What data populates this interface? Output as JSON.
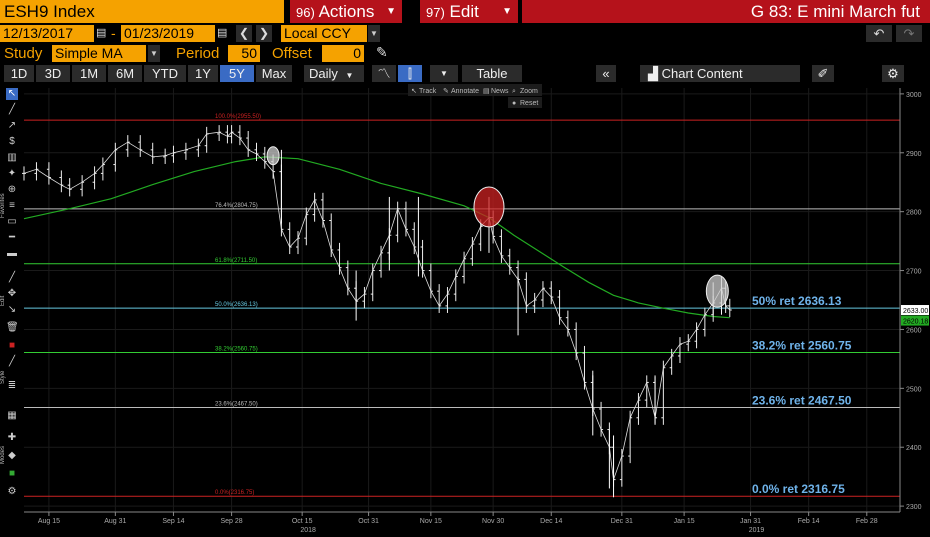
{
  "header": {
    "ticker": "ESH9 Index",
    "actions": {
      "num": "96)",
      "label": "Actions"
    },
    "edit": {
      "num": "97)",
      "label": "Edit"
    },
    "description": "G 83: E mini March fut"
  },
  "range": {
    "start": "12/13/2017",
    "sep": "-",
    "end": "01/23/2019",
    "currency": "Local CCY"
  },
  "study": {
    "label": "Study",
    "value": "Simple MA",
    "period_label": "Period",
    "period": "50",
    "offset_label": "Offset",
    "offset": "0"
  },
  "toolbar": {
    "periods": [
      "1D",
      "3D",
      "1M",
      "6M",
      "YTD",
      "1Y",
      "5Y",
      "Max"
    ],
    "selected_period": "5Y",
    "frequency": "Daily",
    "table": "Table",
    "chart_content": "Chart Content"
  },
  "chart_toolbar": {
    "track": "Track",
    "annotate": "Annotate",
    "news": "News",
    "zoom": "Zoom",
    "reset": "Reset"
  },
  "sidebar_labels": {
    "favorites": "Favorites",
    "edit": "Edit",
    "style": "Style",
    "modes": "Modes"
  },
  "colors": {
    "ticker_bg": "#f5a200",
    "menu_bg": "#b5121b",
    "price": "#ffffff",
    "ma": "#22aa22",
    "fib_100": "#cc2222",
    "fib_618": "#33cc33",
    "fib_50": "#66c8e0",
    "fib_382": "#33cc33",
    "fib_236": "#bbbbbb",
    "fib_0": "#cc2222",
    "label_blue": "#6fb3ea"
  },
  "chart_data": {
    "type": "line",
    "yticks": [
      3000,
      2900,
      2800,
      2700,
      2600,
      2500,
      2400,
      2300
    ],
    "ylim": [
      2290,
      3010
    ],
    "xticks": [
      {
        "date": "Aug 15",
        "day": 0
      },
      {
        "date": "Aug 31",
        "day": 16
      },
      {
        "date": "Sep 14",
        "day": 30
      },
      {
        "date": "Sep 28",
        "day": 44
      },
      {
        "date": "Oct 15",
        "day": 61
      },
      {
        "date": "Oct 31",
        "day": 77
      },
      {
        "date": "Nov 15",
        "day": 92
      },
      {
        "date": "Nov 30",
        "day": 107
      },
      {
        "date": "Dec 14",
        "day": 121
      },
      {
        "date": "Dec 31",
        "day": 138
      },
      {
        "date": "Jan 15",
        "day": 153
      },
      {
        "date": "Jan 31",
        "day": 169
      },
      {
        "date": "Feb 14",
        "day": 183
      },
      {
        "date": "Feb 28",
        "day": 197
      }
    ],
    "year_labels": [
      {
        "text": "2018",
        "day": 61
      },
      {
        "text": "2019",
        "day": 169
      }
    ],
    "xlim": [
      -6,
      205
    ],
    "fib_levels": [
      {
        "tag": "100.0%(2955.50)",
        "value": 2955.5,
        "color": "#cc2222",
        "right_label": ""
      },
      {
        "tag": "76.4%(2804.75)",
        "value": 2804.75,
        "color": "#bbbbbb",
        "right_label": ""
      },
      {
        "tag": "61.8%(2711.50)",
        "value": 2711.5,
        "color": "#33cc33",
        "right_label": ""
      },
      {
        "tag": "50.0%(2636.13)",
        "value": 2636.13,
        "color": "#66c8e0",
        "right_label": "50% ret 2636.13"
      },
      {
        "tag": "38.2%(2560.75)",
        "value": 2560.75,
        "color": "#33cc33",
        "right_label": "38.2% ret 2560.75"
      },
      {
        "tag": "23.6%(2467.50)",
        "value": 2467.5,
        "color": "#bbbbbb",
        "right_label": "23.6% ret 2467.50"
      },
      {
        "tag": "0.0%(2316.75)",
        "value": 2316.75,
        "color": "#cc2222",
        "right_label": "0.0% ret 2316.75"
      }
    ],
    "last_price": "2633.00",
    "ma_last": "2620.18",
    "price_series": {
      "name": "",
      "points": [
        [
          -6,
          2865
        ],
        [
          -3,
          2872
        ],
        [
          0,
          2858
        ],
        [
          3,
          2845
        ],
        [
          5,
          2838
        ],
        [
          8,
          2850
        ],
        [
          11,
          2865
        ],
        [
          13,
          2880
        ],
        [
          16,
          2905
        ],
        [
          19,
          2918
        ],
        [
          22,
          2905
        ],
        [
          25,
          2893
        ],
        [
          28,
          2895
        ],
        [
          30,
          2900
        ],
        [
          33,
          2905
        ],
        [
          36,
          2912
        ],
        [
          38,
          2932
        ],
        [
          41,
          2935
        ],
        [
          43,
          2928
        ],
        [
          44,
          2935
        ],
        [
          46,
          2925
        ],
        [
          48,
          2905
        ],
        [
          50,
          2898
        ],
        [
          52,
          2885
        ],
        [
          54,
          2868
        ],
        [
          56,
          2770
        ],
        [
          58,
          2740
        ],
        [
          60,
          2755
        ],
        [
          62,
          2795
        ],
        [
          64,
          2820
        ],
        [
          66,
          2785
        ],
        [
          68,
          2735
        ],
        [
          70,
          2705
        ],
        [
          72,
          2670
        ],
        [
          74,
          2648
        ],
        [
          76,
          2660
        ],
        [
          78,
          2700
        ],
        [
          80,
          2730
        ],
        [
          82,
          2760
        ],
        [
          84,
          2805
        ],
        [
          86,
          2770
        ],
        [
          88,
          2740
        ],
        [
          90,
          2700
        ],
        [
          92,
          2665
        ],
        [
          94,
          2640
        ],
        [
          96,
          2660
        ],
        [
          98,
          2690
        ],
        [
          100,
          2720
        ],
        [
          102,
          2745
        ],
        [
          104,
          2775
        ],
        [
          106,
          2790
        ],
        [
          107,
          2758
        ],
        [
          109,
          2725
        ],
        [
          111,
          2705
        ],
        [
          113,
          2685
        ],
        [
          115,
          2640
        ],
        [
          117,
          2650
        ],
        [
          119,
          2670
        ],
        [
          121,
          2655
        ],
        [
          123,
          2620
        ],
        [
          125,
          2600
        ],
        [
          127,
          2560
        ],
        [
          129,
          2510
        ],
        [
          131,
          2465
        ],
        [
          133,
          2430
        ],
        [
          135,
          2400
        ],
        [
          136,
          2345
        ],
        [
          138,
          2385
        ],
        [
          140,
          2450
        ],
        [
          142,
          2480
        ],
        [
          144,
          2510
        ],
        [
          146,
          2450
        ],
        [
          148,
          2535
        ],
        [
          150,
          2555
        ],
        [
          152,
          2575
        ],
        [
          154,
          2580
        ],
        [
          156,
          2600
        ],
        [
          158,
          2625
        ],
        [
          160,
          2645
        ],
        [
          162,
          2670
        ],
        [
          163,
          2640
        ],
        [
          164,
          2633
        ]
      ]
    },
    "ma_series": {
      "name": "",
      "points": [
        [
          -6,
          2788
        ],
        [
          5,
          2805
        ],
        [
          15,
          2822
        ],
        [
          25,
          2846
        ],
        [
          35,
          2868
        ],
        [
          45,
          2885
        ],
        [
          52,
          2893
        ],
        [
          60,
          2890
        ],
        [
          70,
          2872
        ],
        [
          80,
          2848
        ],
        [
          90,
          2830
        ],
        [
          100,
          2810
        ],
        [
          106,
          2790
        ],
        [
          112,
          2760
        ],
        [
          118,
          2733
        ],
        [
          124,
          2706
        ],
        [
          130,
          2680
        ],
        [
          136,
          2658
        ],
        [
          142,
          2645
        ],
        [
          148,
          2636
        ],
        [
          154,
          2628
        ],
        [
          160,
          2622
        ],
        [
          164,
          2620
        ]
      ]
    },
    "range_bars": {
      "spikes": [
        [
          56,
          2780,
          2905
        ],
        [
          74,
          2615,
          2700
        ],
        [
          82,
          2700,
          2825
        ],
        [
          89,
          2690,
          2825
        ],
        [
          106,
          2730,
          2825
        ],
        [
          113,
          2590,
          2690
        ],
        [
          131,
          2420,
          2530
        ],
        [
          135,
          2330,
          2430
        ],
        [
          136,
          2315,
          2420
        ],
        [
          146,
          2440,
          2520
        ],
        [
          160,
          2625,
          2680
        ],
        [
          162,
          2625,
          2690
        ]
      ]
    },
    "circles": [
      {
        "day": 54,
        "value": 2895,
        "rx": 6,
        "ry": 9,
        "fill": "#cccccc"
      },
      {
        "day": 106,
        "value": 2808,
        "rx": 15,
        "ry": 20,
        "fill": "#cc2222"
      },
      {
        "day": 161,
        "value": 2665,
        "rx": 11,
        "ry": 16,
        "fill": "#cccccc"
      }
    ]
  }
}
